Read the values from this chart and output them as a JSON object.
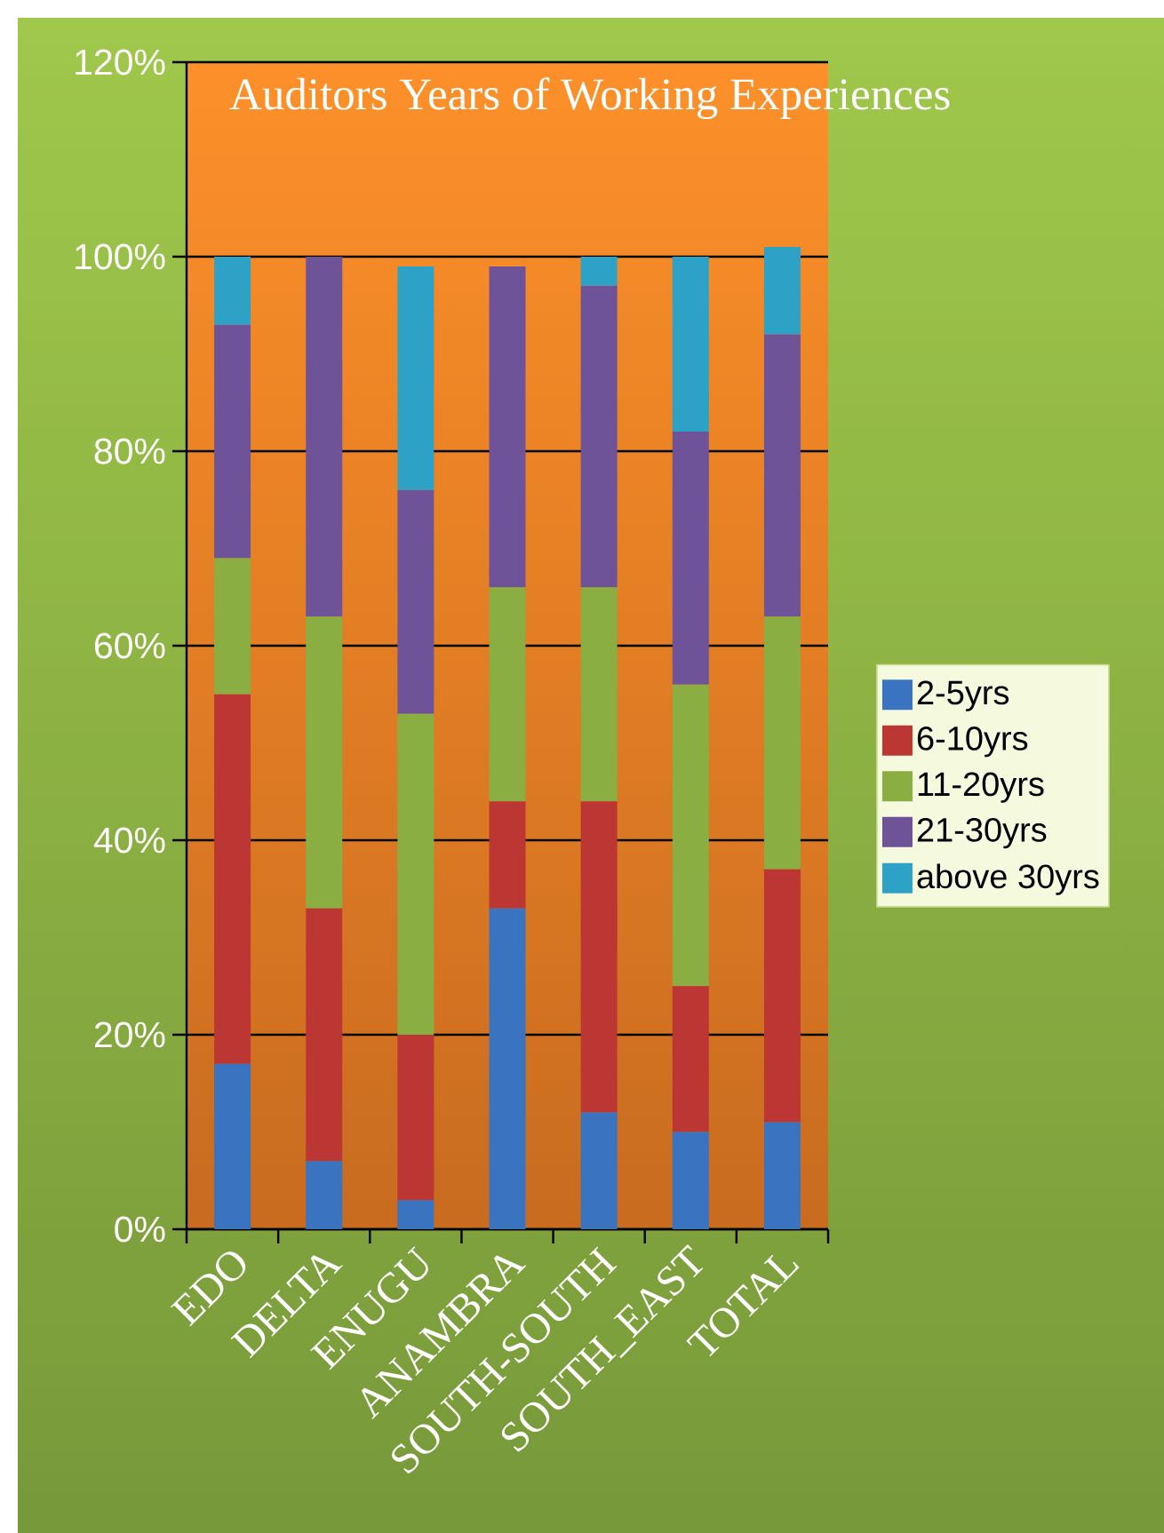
{
  "chart_data": {
    "type": "bar",
    "stacked": true,
    "title": "Auditors Years of Working Experiences",
    "categories": [
      "EDO",
      "DELTA",
      "ENUGU",
      "ANAMBRA",
      "SOUTH-SOUTH",
      "SOUTH_EAST",
      "TOTAL"
    ],
    "series": [
      {
        "name": "2-5yrs",
        "color": "#3a74c0",
        "values": [
          17,
          7,
          3,
          33,
          12,
          10,
          11
        ]
      },
      {
        "name": "6-10yrs",
        "color": "#bc3733",
        "values": [
          38,
          26,
          17,
          11,
          32,
          15,
          26
        ]
      },
      {
        "name": "11-20yrs",
        "color": "#8aae42",
        "values": [
          14,
          30,
          33,
          22,
          22,
          31,
          26
        ]
      },
      {
        "name": "21-30yrs",
        "color": "#6f5399",
        "values": [
          24,
          37,
          23,
          33,
          31,
          26,
          29
        ]
      },
      {
        "name": "above 30yrs",
        "color": "#2ea2c6",
        "values": [
          7,
          0,
          23,
          0,
          3,
          18,
          9
        ]
      }
    ],
    "ylim": [
      0,
      120
    ],
    "yticks": [
      {
        "value": 0,
        "label": "0%"
      },
      {
        "value": 20,
        "label": "20%"
      },
      {
        "value": 40,
        "label": "40%"
      },
      {
        "value": 60,
        "label": "60%"
      },
      {
        "value": 80,
        "label": "80%"
      },
      {
        "value": 100,
        "label": "100%"
      },
      {
        "value": 120,
        "label": "120%"
      }
    ],
    "grid": "y",
    "legend": "right"
  }
}
